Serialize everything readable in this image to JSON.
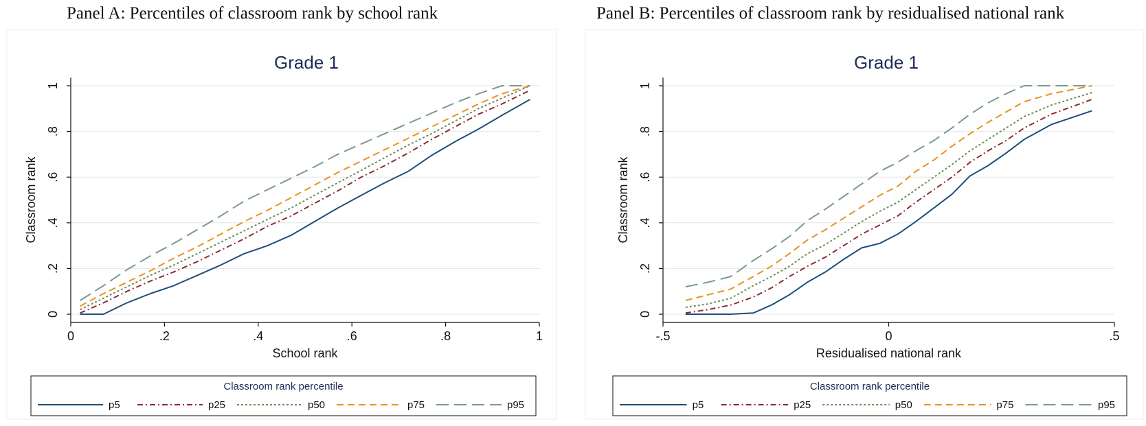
{
  "panels": {
    "a_heading": "Panel A: Percentiles of classroom rank by school rank",
    "b_heading": "Panel B: Percentiles of classroom rank by residualised national rank"
  },
  "style": {
    "title_color": "#1f2d57",
    "grid_color": "#e6e6e6"
  },
  "chart_data": [
    {
      "type": "line",
      "title": "Grade 1",
      "xlabel": "School rank",
      "ylabel": "Classroom rank",
      "xlim": [
        0,
        1
      ],
      "ylim": [
        0,
        1
      ],
      "xticks": [
        0,
        0.2,
        0.4,
        0.6,
        0.8,
        1
      ],
      "xtick_labels": [
        "0",
        ".2",
        ".4",
        ".6",
        ".8",
        "1"
      ],
      "yticks": [
        0,
        0.2,
        0.4,
        0.6,
        0.8,
        1
      ],
      "ytick_labels": [
        "0",
        ".2",
        ".4",
        ".6",
        ".8",
        "1"
      ],
      "grid": true,
      "legend_title": "Classroom rank percentile",
      "legend_position": "bottom",
      "series": [
        {
          "name": "p5",
          "color": "#1f4e79",
          "dash": "solid",
          "points": [
            [
              0.02,
              0
            ],
            [
              0.07,
              0
            ],
            [
              0.12,
              0.05
            ],
            [
              0.17,
              0.09
            ],
            [
              0.22,
              0.125
            ],
            [
              0.27,
              0.17
            ],
            [
              0.32,
              0.215
            ],
            [
              0.37,
              0.265
            ],
            [
              0.42,
              0.3
            ],
            [
              0.47,
              0.345
            ],
            [
              0.52,
              0.405
            ],
            [
              0.57,
              0.465
            ],
            [
              0.62,
              0.52
            ],
            [
              0.67,
              0.575
            ],
            [
              0.72,
              0.625
            ],
            [
              0.77,
              0.695
            ],
            [
              0.82,
              0.755
            ],
            [
              0.87,
              0.81
            ],
            [
              0.92,
              0.87
            ],
            [
              0.98,
              0.94
            ]
          ]
        },
        {
          "name": "p25",
          "color": "#8b2a35",
          "dash": "8,4,2,4",
          "points": [
            [
              0.02,
              0.005
            ],
            [
              0.07,
              0.05
            ],
            [
              0.12,
              0.1
            ],
            [
              0.17,
              0.145
            ],
            [
              0.22,
              0.185
            ],
            [
              0.27,
              0.23
            ],
            [
              0.32,
              0.28
            ],
            [
              0.37,
              0.33
            ],
            [
              0.42,
              0.385
            ],
            [
              0.47,
              0.43
            ],
            [
              0.52,
              0.485
            ],
            [
              0.57,
              0.54
            ],
            [
              0.62,
              0.6
            ],
            [
              0.67,
              0.65
            ],
            [
              0.72,
              0.705
            ],
            [
              0.77,
              0.765
            ],
            [
              0.82,
              0.82
            ],
            [
              0.87,
              0.875
            ],
            [
              0.92,
              0.92
            ],
            [
              0.98,
              0.98
            ]
          ]
        },
        {
          "name": "p50",
          "color": "#6e8b5a",
          "dash": "3,3",
          "points": [
            [
              0.02,
              0.02
            ],
            [
              0.07,
              0.07
            ],
            [
              0.12,
              0.12
            ],
            [
              0.17,
              0.17
            ],
            [
              0.22,
              0.215
            ],
            [
              0.27,
              0.265
            ],
            [
              0.32,
              0.315
            ],
            [
              0.37,
              0.365
            ],
            [
              0.42,
              0.415
            ],
            [
              0.47,
              0.465
            ],
            [
              0.52,
              0.52
            ],
            [
              0.57,
              0.575
            ],
            [
              0.62,
              0.63
            ],
            [
              0.67,
              0.685
            ],
            [
              0.72,
              0.74
            ],
            [
              0.77,
              0.79
            ],
            [
              0.82,
              0.845
            ],
            [
              0.87,
              0.9
            ],
            [
              0.92,
              0.945
            ],
            [
              0.98,
              1
            ]
          ]
        },
        {
          "name": "p75",
          "color": "#e8921e",
          "dash": "10,6",
          "points": [
            [
              0.02,
              0.035
            ],
            [
              0.07,
              0.09
            ],
            [
              0.12,
              0.14
            ],
            [
              0.17,
              0.19
            ],
            [
              0.22,
              0.245
            ],
            [
              0.27,
              0.295
            ],
            [
              0.32,
              0.35
            ],
            [
              0.37,
              0.405
            ],
            [
              0.42,
              0.455
            ],
            [
              0.47,
              0.51
            ],
            [
              0.52,
              0.565
            ],
            [
              0.57,
              0.62
            ],
            [
              0.62,
              0.67
            ],
            [
              0.67,
              0.72
            ],
            [
              0.72,
              0.77
            ],
            [
              0.77,
              0.82
            ],
            [
              0.82,
              0.87
            ],
            [
              0.87,
              0.92
            ],
            [
              0.92,
              0.965
            ],
            [
              0.98,
              1
            ]
          ]
        },
        {
          "name": "p95",
          "color": "#7a9a8f",
          "dash": "18,8",
          "points": [
            [
              0.02,
              0.06
            ],
            [
              0.07,
              0.125
            ],
            [
              0.12,
              0.195
            ],
            [
              0.17,
              0.255
            ],
            [
              0.22,
              0.31
            ],
            [
              0.27,
              0.37
            ],
            [
              0.32,
              0.43
            ],
            [
              0.37,
              0.495
            ],
            [
              0.42,
              0.545
            ],
            [
              0.47,
              0.595
            ],
            [
              0.52,
              0.645
            ],
            [
              0.57,
              0.7
            ],
            [
              0.62,
              0.745
            ],
            [
              0.67,
              0.79
            ],
            [
              0.72,
              0.835
            ],
            [
              0.77,
              0.88
            ],
            [
              0.82,
              0.925
            ],
            [
              0.87,
              0.965
            ],
            [
              0.92,
              1
            ],
            [
              0.98,
              1
            ]
          ]
        }
      ]
    },
    {
      "type": "line",
      "title": "Grade 1",
      "xlabel": "Residualised national rank",
      "ylabel": "Classroom rank",
      "xlim": [
        -0.5,
        0.5
      ],
      "ylim": [
        0,
        1
      ],
      "xticks": [
        -0.5,
        0,
        0.5
      ],
      "xtick_labels": [
        "-.5",
        "0",
        ".5"
      ],
      "yticks": [
        0,
        0.2,
        0.4,
        0.6,
        0.8,
        1
      ],
      "ytick_labels": [
        "0",
        ".2",
        ".4",
        ".6",
        ".8",
        "1"
      ],
      "grid": true,
      "legend_title": "Classroom rank percentile",
      "legend_position": "bottom",
      "series": [
        {
          "name": "p5",
          "color": "#1f4e79",
          "dash": "solid",
          "points": [
            [
              -0.45,
              0
            ],
            [
              -0.4,
              0
            ],
            [
              -0.35,
              0
            ],
            [
              -0.3,
              0.005
            ],
            [
              -0.26,
              0.04
            ],
            [
              -0.22,
              0.085
            ],
            [
              -0.18,
              0.14
            ],
            [
              -0.14,
              0.185
            ],
            [
              -0.1,
              0.24
            ],
            [
              -0.06,
              0.29
            ],
            [
              -0.02,
              0.31
            ],
            [
              0.02,
              0.35
            ],
            [
              0.06,
              0.405
            ],
            [
              0.1,
              0.465
            ],
            [
              0.14,
              0.525
            ],
            [
              0.18,
              0.605
            ],
            [
              0.22,
              0.65
            ],
            [
              0.26,
              0.705
            ],
            [
              0.3,
              0.765
            ],
            [
              0.36,
              0.83
            ],
            [
              0.45,
              0.89
            ]
          ]
        },
        {
          "name": "p25",
          "color": "#8b2a35",
          "dash": "8,4,2,4",
          "points": [
            [
              -0.45,
              0.005
            ],
            [
              -0.4,
              0.02
            ],
            [
              -0.35,
              0.04
            ],
            [
              -0.3,
              0.075
            ],
            [
              -0.26,
              0.115
            ],
            [
              -0.22,
              0.165
            ],
            [
              -0.18,
              0.21
            ],
            [
              -0.14,
              0.25
            ],
            [
              -0.1,
              0.3
            ],
            [
              -0.06,
              0.35
            ],
            [
              -0.02,
              0.39
            ],
            [
              0.02,
              0.43
            ],
            [
              0.06,
              0.49
            ],
            [
              0.1,
              0.545
            ],
            [
              0.14,
              0.6
            ],
            [
              0.18,
              0.665
            ],
            [
              0.22,
              0.715
            ],
            [
              0.26,
              0.76
            ],
            [
              0.3,
              0.815
            ],
            [
              0.36,
              0.875
            ],
            [
              0.45,
              0.94
            ]
          ]
        },
        {
          "name": "p50",
          "color": "#6e8b5a",
          "dash": "3,3",
          "points": [
            [
              -0.45,
              0.03
            ],
            [
              -0.4,
              0.045
            ],
            [
              -0.35,
              0.07
            ],
            [
              -0.3,
              0.125
            ],
            [
              -0.26,
              0.165
            ],
            [
              -0.22,
              0.21
            ],
            [
              -0.18,
              0.265
            ],
            [
              -0.14,
              0.305
            ],
            [
              -0.1,
              0.355
            ],
            [
              -0.06,
              0.405
            ],
            [
              -0.02,
              0.45
            ],
            [
              0.02,
              0.49
            ],
            [
              0.06,
              0.545
            ],
            [
              0.1,
              0.6
            ],
            [
              0.14,
              0.655
            ],
            [
              0.18,
              0.715
            ],
            [
              0.22,
              0.765
            ],
            [
              0.26,
              0.815
            ],
            [
              0.3,
              0.865
            ],
            [
              0.36,
              0.915
            ],
            [
              0.45,
              0.97
            ]
          ]
        },
        {
          "name": "p75",
          "color": "#e8921e",
          "dash": "10,6",
          "points": [
            [
              -0.45,
              0.06
            ],
            [
              -0.4,
              0.085
            ],
            [
              -0.35,
              0.11
            ],
            [
              -0.3,
              0.165
            ],
            [
              -0.26,
              0.21
            ],
            [
              -0.22,
              0.265
            ],
            [
              -0.18,
              0.325
            ],
            [
              -0.14,
              0.37
            ],
            [
              -0.1,
              0.42
            ],
            [
              -0.06,
              0.47
            ],
            [
              -0.02,
              0.52
            ],
            [
              0.02,
              0.56
            ],
            [
              0.06,
              0.625
            ],
            [
              0.1,
              0.675
            ],
            [
              0.14,
              0.735
            ],
            [
              0.18,
              0.79
            ],
            [
              0.22,
              0.84
            ],
            [
              0.26,
              0.885
            ],
            [
              0.3,
              0.93
            ],
            [
              0.36,
              0.965
            ],
            [
              0.45,
              1
            ]
          ]
        },
        {
          "name": "p95",
          "color": "#7a9a8f",
          "dash": "18,8",
          "points": [
            [
              -0.45,
              0.12
            ],
            [
              -0.4,
              0.14
            ],
            [
              -0.35,
              0.165
            ],
            [
              -0.3,
              0.235
            ],
            [
              -0.26,
              0.285
            ],
            [
              -0.22,
              0.34
            ],
            [
              -0.18,
              0.41
            ],
            [
              -0.14,
              0.46
            ],
            [
              -0.1,
              0.515
            ],
            [
              -0.06,
              0.57
            ],
            [
              -0.02,
              0.625
            ],
            [
              0.02,
              0.665
            ],
            [
              0.06,
              0.715
            ],
            [
              0.1,
              0.76
            ],
            [
              0.14,
              0.815
            ],
            [
              0.18,
              0.875
            ],
            [
              0.22,
              0.925
            ],
            [
              0.26,
              0.965
            ],
            [
              0.3,
              1
            ],
            [
              0.36,
              1
            ],
            [
              0.45,
              1
            ]
          ]
        }
      ]
    }
  ]
}
